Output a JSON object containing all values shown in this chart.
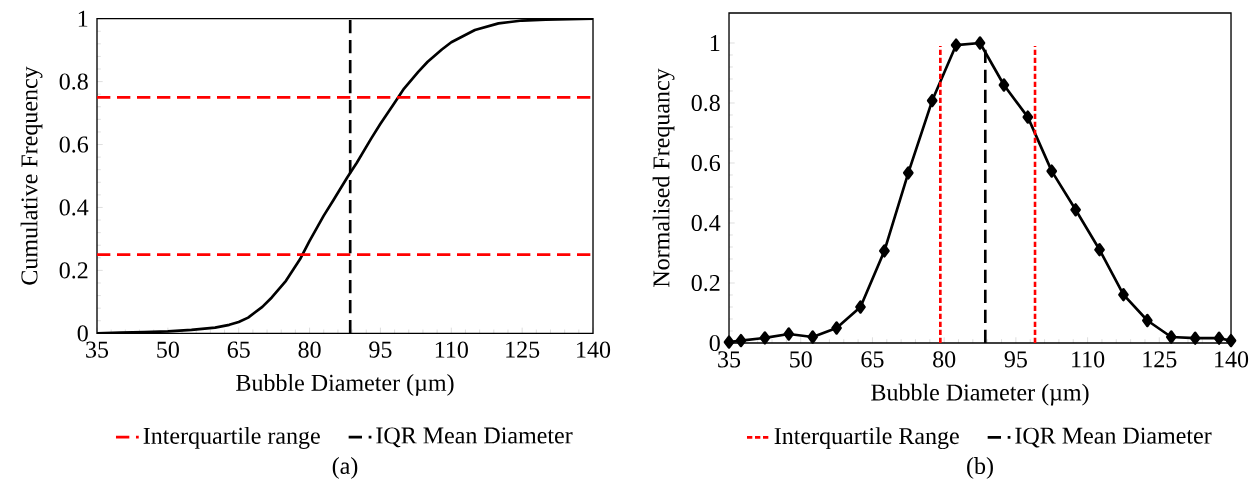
{
  "chart_data": [
    {
      "type": "line",
      "xlabel": "Bubble Diameter (µm)",
      "ylabel": "Cumulative Frequency",
      "xlim": [
        35,
        140
      ],
      "ylim": [
        0,
        1
      ],
      "xticks": [
        35,
        50,
        65,
        80,
        95,
        110,
        125,
        140
      ],
      "yticks": [
        0,
        0.2,
        0.4,
        0.6,
        0.8,
        1
      ],
      "legend": "bottom",
      "annotations": [
        "(a)"
      ],
      "series": [
        {
          "color": "#000000",
          "line_style": "solid",
          "x": [
            35,
            40,
            45,
            50,
            55,
            60,
            63,
            65,
            67,
            70,
            72,
            75,
            78,
            80,
            83,
            85,
            88,
            90,
            93,
            95,
            98,
            100,
            103,
            105,
            108,
            110,
            115,
            120,
            125,
            130,
            140
          ],
          "values": [
            0,
            0.002,
            0.004,
            0.006,
            0.011,
            0.018,
            0.027,
            0.036,
            0.05,
            0.084,
            0.114,
            0.167,
            0.236,
            0.294,
            0.374,
            0.422,
            0.496,
            0.542,
            0.618,
            0.666,
            0.733,
            0.778,
            0.831,
            0.863,
            0.902,
            0.925,
            0.964,
            0.985,
            0.994,
            0.997,
            1
          ]
        },
        {
          "name": "Interquartile range",
          "color": "#ff0000",
          "line_style": "dashed",
          "x": [
            35,
            140
          ],
          "values": [
            0.25,
            0.25
          ]
        },
        {
          "color": "#ff0000",
          "line_style": "dashed",
          "x": [
            35,
            140
          ],
          "values": [
            0.75,
            0.75
          ]
        },
        {
          "name": "IQR Mean Diameter",
          "color": "#000000",
          "line_style": "dashed",
          "x": [
            88.6,
            88.6
          ],
          "values": [
            0,
            1
          ]
        }
      ]
    },
    {
      "type": "line",
      "xlabel": "Bubble Diameter (µm)",
      "ylabel": "Normalised Frequancy",
      "xlim": [
        35,
        140
      ],
      "ylim": [
        0,
        1.1
      ],
      "xticks": [
        35,
        50,
        65,
        80,
        95,
        110,
        125,
        140
      ],
      "yticks": [
        0,
        0.2,
        0.4,
        0.6,
        0.8,
        1
      ],
      "legend": "bottom",
      "annotations": [
        "(b)"
      ],
      "series": [
        {
          "color": "#000000",
          "line_style": "solid",
          "marker": "diamond",
          "x": [
            35,
            37.5,
            42.5,
            47.5,
            52.5,
            57.5,
            62.5,
            67.5,
            72.5,
            77.5,
            82.5,
            87.5,
            92.5,
            97.5,
            102.5,
            107.5,
            112.5,
            117.5,
            122.5,
            127.5,
            132.5,
            137.5,
            140
          ],
          "values": [
            0.003,
            0.008,
            0.017,
            0.03,
            0.02,
            0.05,
            0.12,
            0.307,
            0.567,
            0.808,
            0.993,
            1,
            0.86,
            0.753,
            0.573,
            0.444,
            0.311,
            0.161,
            0.075,
            0.02,
            0.016,
            0.016,
            0.008
          ]
        },
        {
          "name": "Interquartile Range",
          "color": "#ff0000",
          "line_style": "dotted",
          "x": [
            79.2,
            79.2
          ],
          "values": [
            0,
            0.99
          ]
        },
        {
          "color": "#ff0000",
          "line_style": "dotted",
          "x": [
            99,
            99
          ],
          "values": [
            0,
            0.99
          ]
        },
        {
          "name": "IQR Mean Diameter",
          "color": "#000000",
          "line_style": "dashed",
          "x": [
            88.6,
            88.6
          ],
          "values": [
            0,
            1
          ]
        }
      ]
    }
  ]
}
